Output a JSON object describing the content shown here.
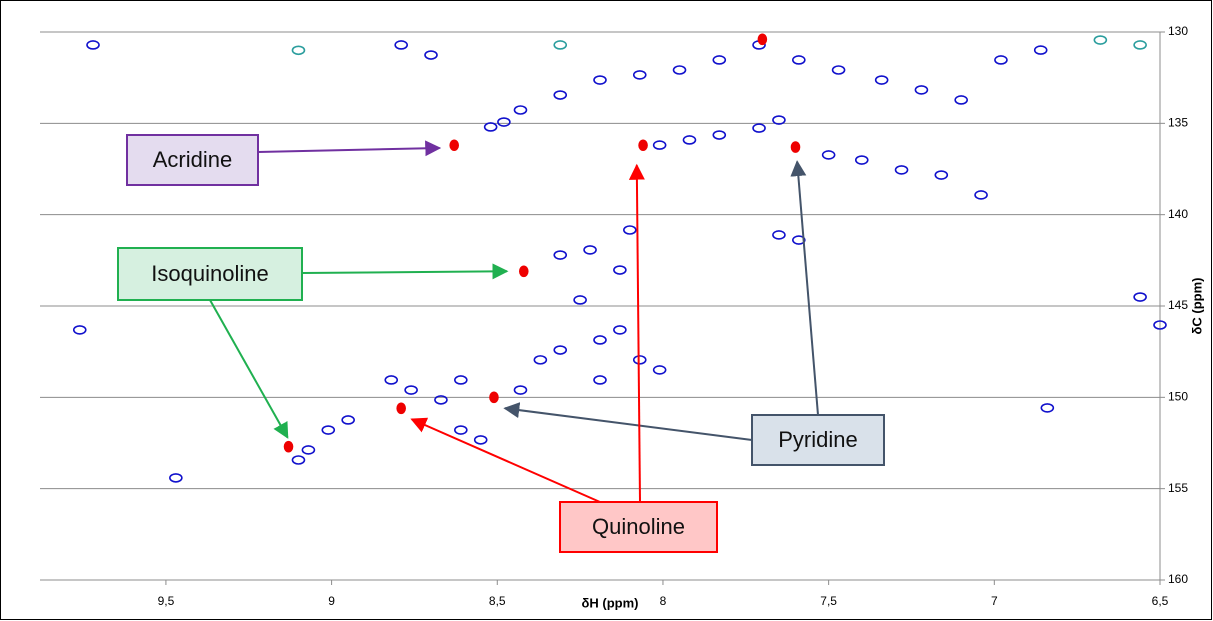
{
  "chart_data": {
    "type": "scatter",
    "x_label": "δH (ppm)",
    "y_label": "δC (ppm)",
    "xlim": [
      9.88,
      6.5
    ],
    "ylim": [
      130,
      160
    ],
    "xticks": [
      {
        "value": 9.5,
        "label": "9,5"
      },
      9,
      {
        "value": 8.5,
        "label": "8,5"
      },
      8,
      {
        "value": 7.5,
        "label": "7,5"
      },
      7,
      {
        "value": 6.5,
        "label": "6,5"
      }
    ],
    "yticks": [
      130,
      135,
      140,
      145,
      150,
      155,
      160
    ],
    "grid": true,
    "series": [
      {
        "color": "#2a9d9d",
        "x": [
          9.1,
          8.31,
          6.68,
          6.56
        ],
        "values": [
          131.0,
          130.71,
          130.44,
          130.71
        ]
      },
      {
        "color": "#1010cc",
        "x": [
          8.52,
          8.48,
          8.43,
          8.31,
          8.19,
          8.07,
          7.95,
          7.83,
          7.71,
          7.59,
          7.47,
          7.34,
          7.22,
          7.1,
          6.98,
          6.86,
          8.7,
          8.79,
          8.01,
          7.92,
          7.83,
          7.71,
          7.65,
          7.5,
          7.4,
          7.28,
          7.16,
          7.04,
          7.65,
          7.59,
          8.31,
          8.22,
          8.13,
          8.25,
          8.31,
          8.19,
          8.13,
          8.07,
          8.01,
          8.19,
          8.37,
          8.43,
          8.61,
          8.67,
          8.76,
          8.82,
          8.61,
          8.55,
          8.95,
          9.01,
          9.07,
          9.1,
          9.47,
          9.72,
          6.56,
          6.5,
          9.76,
          6.84,
          8.1
        ],
        "values": [
          135.2,
          134.93,
          134.27,
          133.45,
          132.63,
          132.35,
          132.08,
          131.53,
          130.71,
          131.53,
          132.08,
          132.63,
          133.17,
          133.72,
          131.53,
          130.99,
          131.26,
          130.71,
          136.19,
          135.91,
          135.64,
          135.26,
          134.82,
          136.73,
          137.01,
          137.55,
          137.83,
          138.92,
          141.11,
          141.39,
          142.21,
          141.93,
          143.03,
          144.67,
          147.41,
          146.86,
          146.31,
          147.95,
          148.5,
          149.05,
          147.95,
          149.6,
          149.05,
          150.14,
          149.6,
          149.05,
          151.79,
          152.33,
          151.24,
          151.79,
          152.88,
          153.43,
          154.41,
          130.71,
          144.51,
          146.04,
          146.31,
          150.58,
          140.84
        ]
      },
      {
        "color": "#ee0000",
        "x": [
          8.63,
          8.06,
          8.42,
          8.79,
          8.51,
          9.13,
          7.6,
          7.7
        ],
        "values": [
          136.2,
          136.2,
          143.1,
          150.6,
          150.0,
          152.7,
          136.3,
          130.4
        ]
      }
    ],
    "annotations": [
      {
        "text": "Acridine",
        "fill": "#e4dcef",
        "border": "#7030a0",
        "arrow": "#7030a0",
        "targets": [
          {
            "x": 8.674,
            "y": 136.35
          }
        ]
      },
      {
        "text": "Isoquinoline",
        "fill": "#d6f0e0",
        "border": "#20b050",
        "arrow": "#20b050",
        "targets": [
          {
            "x": 8.471,
            "y": 143.1
          },
          {
            "x": 9.133,
            "y": 152.2
          }
        ]
      },
      {
        "text": "Pyridine",
        "fill": "#d9e1ea",
        "border": "#44546a",
        "arrow": "#44546a",
        "targets": [
          {
            "x": 7.595,
            "y": 137.1
          },
          {
            "x": 8.477,
            "y": 150.6
          }
        ]
      },
      {
        "text": "Quinoline",
        "fill": "#ffc7c7",
        "border": "#ff0000",
        "arrow": "#ff0000",
        "targets": [
          {
            "x": 8.079,
            "y": 137.3
          },
          {
            "x": 8.758,
            "y": 151.2
          }
        ]
      }
    ]
  }
}
